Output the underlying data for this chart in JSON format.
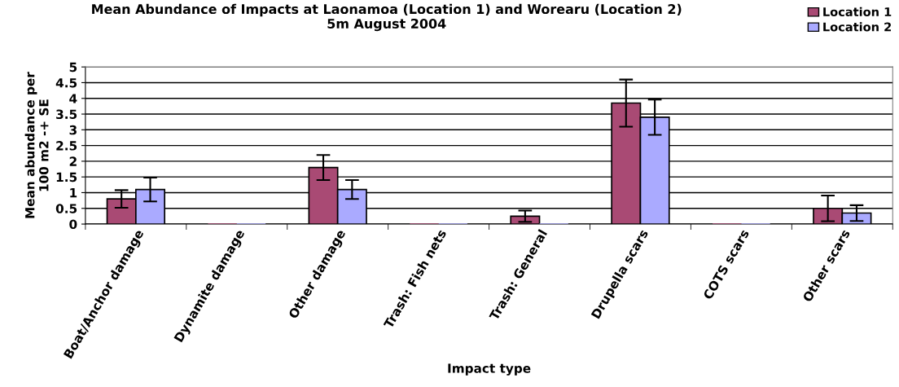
{
  "chart_data": {
    "type": "bar",
    "title": "Mean Abundance of Impacts at Laonamoa (Location 1) and Worearu (Location 2)\n5m August 2004",
    "xlabel": "Impact type",
    "ylabel": "Mean abundance per\n100 m2 -+ SE",
    "categories": [
      "Boat/Anchor damage",
      "Dynamite damage",
      "Other damage",
      "Trash: Fish nets",
      "Trash: General",
      "Drupella scars",
      "COTS scars",
      "Other scars"
    ],
    "series": [
      {
        "name": "Location 1",
        "color": "#a94a74",
        "values": [
          0.8,
          0,
          1.8,
          0,
          0.25,
          3.85,
          0,
          0.5
        ],
        "errors": [
          0.28,
          null,
          0.4,
          null,
          0.18,
          0.75,
          null,
          0.41
        ]
      },
      {
        "name": "Location 2",
        "color": "#aaaaff",
        "values": [
          1.1,
          0,
          1.1,
          0,
          0,
          3.4,
          0,
          0.35
        ],
        "errors": [
          0.38,
          null,
          0.3,
          null,
          null,
          0.56,
          null,
          0.25
        ]
      }
    ],
    "ylim": [
      0,
      5
    ],
    "yticks": [
      0,
      0.5,
      1,
      1.5,
      2,
      2.5,
      3,
      3.5,
      4,
      4.5,
      5
    ],
    "grid": "y",
    "legend": "top right"
  }
}
